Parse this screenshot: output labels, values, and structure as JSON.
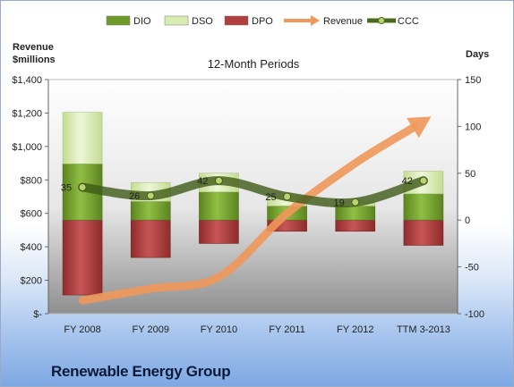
{
  "company": "Renewable Energy Group",
  "chart_data": {
    "type": "bar",
    "title": "12-Month Periods",
    "y_left_label": [
      "Revenue",
      "$millions"
    ],
    "y_right_label": "Days",
    "categories": [
      "FY 2008",
      "FY 2009",
      "FY 2010",
      "FY 2011",
      "FY 2012",
      "TTM 3-2013"
    ],
    "y_left_ticks": [
      "$-",
      "$200",
      "$400",
      "$600",
      "$800",
      "$1,000",
      "$1,200",
      "$1,400"
    ],
    "y_left_range": [
      0,
      1400
    ],
    "y_right_ticks": [
      "-100",
      "-50",
      "0",
      "50",
      "100",
      "150"
    ],
    "y_right_range": [
      -100,
      150
    ],
    "legend_position": "top",
    "legend": [
      {
        "name": "DIO",
        "kind": "bar",
        "color": "#6f9a2a"
      },
      {
        "name": "DSO",
        "kind": "bar",
        "color": "#d9ecb2"
      },
      {
        "name": "DPO",
        "kind": "bar",
        "color": "#b03f3f"
      },
      {
        "name": "Revenue",
        "kind": "arrow",
        "color": "#f0975a"
      },
      {
        "name": "CCC",
        "kind": "line",
        "color": "#4c6a1f"
      }
    ],
    "series": [
      {
        "name": "DIO",
        "axis": "right",
        "values": [
          60,
          20,
          30,
          15,
          15,
          28
        ]
      },
      {
        "name": "DSO",
        "axis": "right",
        "values": [
          55,
          20,
          20,
          10,
          4,
          24
        ]
      },
      {
        "name": "DPO",
        "axis": "right",
        "values": [
          -80,
          -40,
          -25,
          -12,
          -12,
          -27
        ]
      },
      {
        "name": "CCC",
        "axis": "right",
        "values": [
          35,
          26,
          42,
          25,
          19,
          42
        ]
      },
      {
        "name": "Revenue",
        "axis": "left",
        "values": [
          80,
          150,
          220,
          600,
          900,
          1150
        ]
      }
    ],
    "ccc_labels": [
      "35",
      "26",
      "42",
      "25",
      "19",
      "42"
    ]
  }
}
